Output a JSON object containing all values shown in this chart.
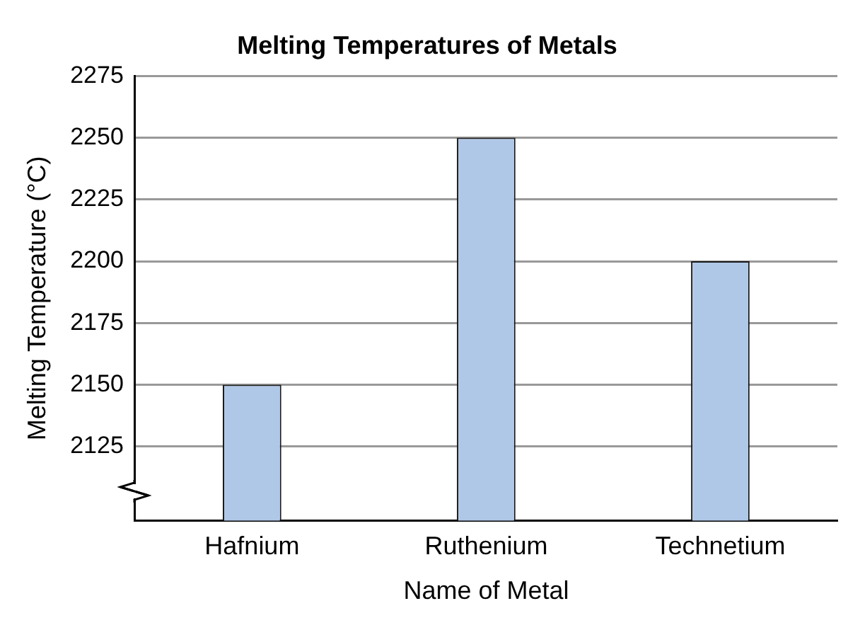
{
  "chart_data": {
    "type": "bar",
    "title": "Melting Temperatures of Metals",
    "xlabel": "Name of Metal",
    "ylabel": "Melting Temperature (°C)",
    "categories": [
      "Hafnium",
      "Ruthenium",
      "Technetium"
    ],
    "values": [
      2150,
      2250,
      2200
    ],
    "color": "#b0c8e8",
    "ylim": [
      2095,
      2275
    ],
    "yticks": [
      2125,
      2150,
      2175,
      2200,
      2225,
      2250,
      2275
    ],
    "grid": "y",
    "legend": false
  }
}
